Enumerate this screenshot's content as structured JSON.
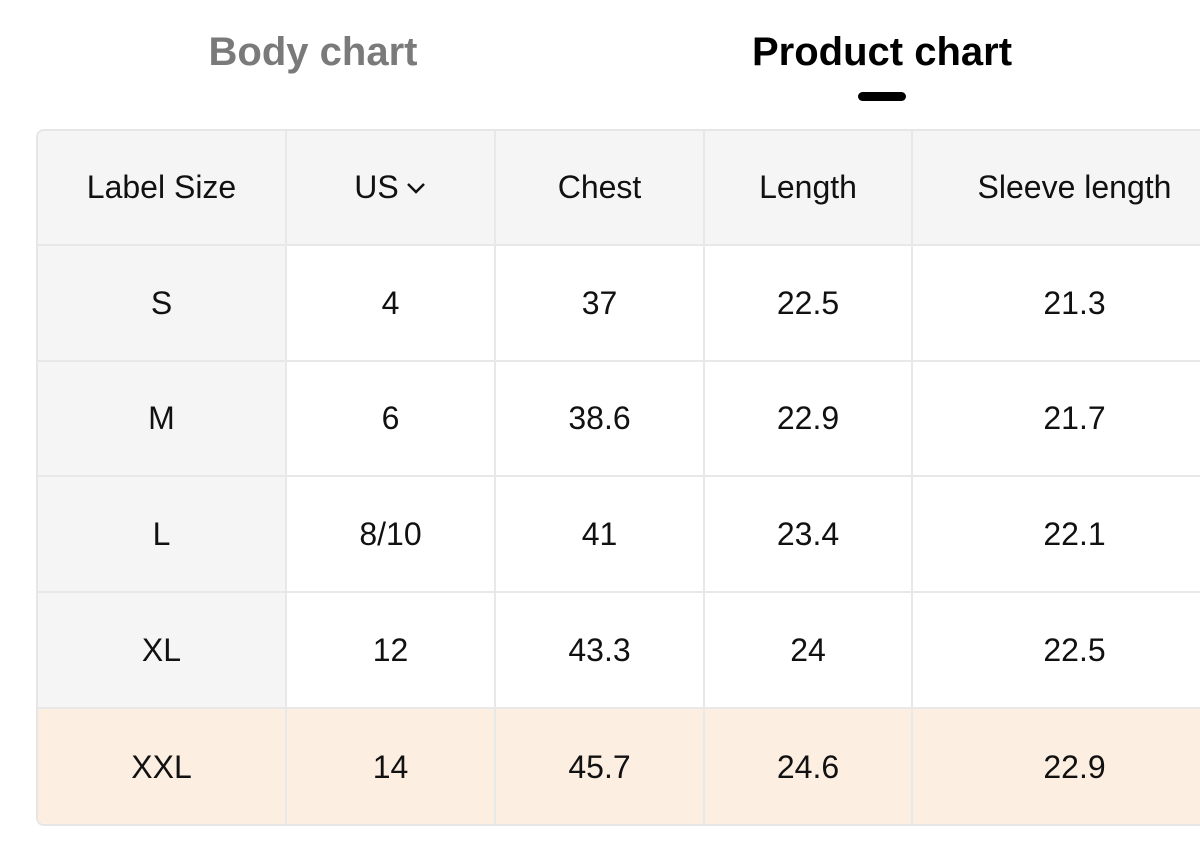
{
  "tabs": [
    {
      "label": "Body chart",
      "active": false
    },
    {
      "label": "Product chart",
      "active": true
    }
  ],
  "table": {
    "header": [
      "Label Size",
      "US",
      "Chest",
      "Length",
      "Sleeve length"
    ],
    "rows": [
      [
        "S",
        4,
        37,
        22.5,
        21.3
      ],
      [
        "M",
        6,
        38.6,
        22.9,
        21.7
      ],
      [
        "L",
        "8/10",
        41,
        23.4,
        22.1
      ],
      [
        "XL",
        12,
        43.3,
        24,
        22.5
      ],
      [
        "XXL",
        14,
        45.7,
        24.6,
        22.9
      ]
    ],
    "highlighted_row": 4
  }
}
